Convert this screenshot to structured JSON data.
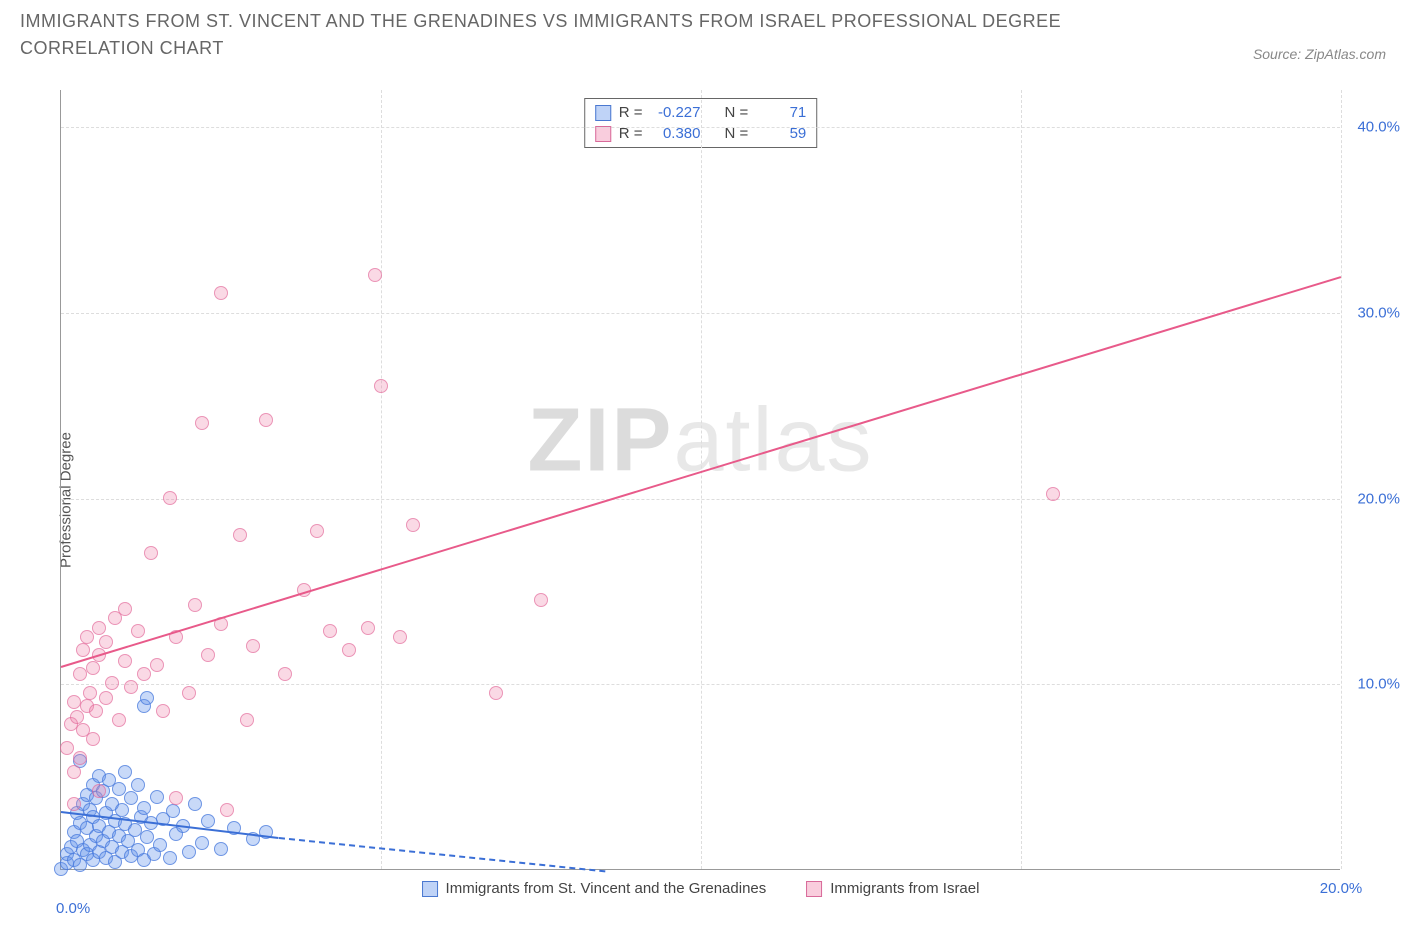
{
  "header": {
    "title": "IMMIGRANTS FROM ST. VINCENT AND THE GRENADINES VS IMMIGRANTS FROM ISRAEL PROFESSIONAL DEGREE CORRELATION CHART",
    "source_prefix": "Source: ",
    "source_name": "ZipAtlas.com"
  },
  "watermark": {
    "part1": "ZIP",
    "part2": "atlas"
  },
  "chart": {
    "type": "scatter",
    "ylabel": "Professional Degree",
    "xlim": [
      0,
      20
    ],
    "ylim": [
      0,
      42
    ],
    "x_ticks": [
      0,
      20
    ],
    "x_tick_labels": [
      "0.0%",
      "20.0%"
    ],
    "y_ticks": [
      10,
      20,
      30,
      40
    ],
    "y_tick_labels": [
      "10.0%",
      "20.0%",
      "30.0%",
      "40.0%"
    ],
    "x_gridlines_at": [
      5,
      10,
      15,
      20
    ],
    "background_color": "#ffffff",
    "grid_color": "#dddddd",
    "axis_color": "#999999",
    "tick_label_color": "#3b6fd6",
    "point_radius": 7,
    "series": [
      {
        "name": "Immigrants from St. Vincent and the Grenadines",
        "color_fill": "rgba(96,145,234,0.35)",
        "color_stroke": "rgba(70,120,220,0.7)",
        "trend_color": "#3b6fd6",
        "R": "-0.227",
        "N": "71",
        "trend": {
          "x1": 0,
          "y1": 3.2,
          "x2": 3.4,
          "y2": 1.8,
          "x2_dash": 8.5,
          "y2_dash": 0
        },
        "points": [
          [
            0.0,
            0.0
          ],
          [
            0.1,
            0.3
          ],
          [
            0.1,
            0.8
          ],
          [
            0.15,
            1.2
          ],
          [
            0.2,
            0.5
          ],
          [
            0.2,
            2.0
          ],
          [
            0.25,
            1.5
          ],
          [
            0.25,
            3.0
          ],
          [
            0.3,
            0.2
          ],
          [
            0.3,
            2.5
          ],
          [
            0.35,
            1.0
          ],
          [
            0.35,
            3.5
          ],
          [
            0.4,
            0.8
          ],
          [
            0.4,
            2.2
          ],
          [
            0.4,
            4.0
          ],
          [
            0.45,
            1.3
          ],
          [
            0.45,
            3.2
          ],
          [
            0.5,
            0.5
          ],
          [
            0.5,
            2.8
          ],
          [
            0.5,
            4.5
          ],
          [
            0.55,
            1.8
          ],
          [
            0.55,
            3.8
          ],
          [
            0.6,
            0.9
          ],
          [
            0.6,
            2.3
          ],
          [
            0.6,
            5.0
          ],
          [
            0.65,
            1.5
          ],
          [
            0.65,
            4.2
          ],
          [
            0.7,
            0.6
          ],
          [
            0.7,
            3.0
          ],
          [
            0.75,
            2.0
          ],
          [
            0.75,
            4.8
          ],
          [
            0.8,
            1.2
          ],
          [
            0.8,
            3.5
          ],
          [
            0.85,
            0.4
          ],
          [
            0.85,
            2.6
          ],
          [
            0.9,
            1.8
          ],
          [
            0.9,
            4.3
          ],
          [
            0.95,
            0.9
          ],
          [
            0.95,
            3.2
          ],
          [
            1.0,
            2.4
          ],
          [
            1.0,
            5.2
          ],
          [
            1.05,
            1.5
          ],
          [
            1.1,
            0.7
          ],
          [
            1.1,
            3.8
          ],
          [
            1.15,
            2.1
          ],
          [
            1.2,
            1.0
          ],
          [
            1.2,
            4.5
          ],
          [
            1.25,
            2.8
          ],
          [
            1.3,
            0.5
          ],
          [
            1.3,
            3.3
          ],
          [
            1.35,
            1.7
          ],
          [
            1.4,
            2.5
          ],
          [
            1.45,
            0.8
          ],
          [
            1.5,
            3.9
          ],
          [
            1.55,
            1.3
          ],
          [
            1.6,
            2.7
          ],
          [
            1.7,
            0.6
          ],
          [
            1.75,
            3.1
          ],
          [
            1.8,
            1.9
          ],
          [
            1.9,
            2.3
          ],
          [
            2.0,
            0.9
          ],
          [
            2.1,
            3.5
          ],
          [
            2.2,
            1.4
          ],
          [
            2.3,
            2.6
          ],
          [
            2.5,
            1.1
          ],
          [
            2.7,
            2.2
          ],
          [
            3.0,
            1.6
          ],
          [
            3.2,
            2.0
          ],
          [
            1.3,
            8.8
          ],
          [
            1.35,
            9.2
          ],
          [
            0.3,
            5.8
          ]
        ]
      },
      {
        "name": "Immigrants from Israel",
        "color_fill": "rgba(240,130,170,0.3)",
        "color_stroke": "rgba(225,100,150,0.6)",
        "trend_color": "#e85a8a",
        "R": "0.380",
        "N": "59",
        "trend": {
          "x1": 0,
          "y1": 11.0,
          "x2": 20,
          "y2": 32.0
        },
        "points": [
          [
            0.1,
            6.5
          ],
          [
            0.15,
            7.8
          ],
          [
            0.2,
            5.2
          ],
          [
            0.2,
            9.0
          ],
          [
            0.25,
            8.2
          ],
          [
            0.3,
            6.0
          ],
          [
            0.3,
            10.5
          ],
          [
            0.35,
            7.5
          ],
          [
            0.35,
            11.8
          ],
          [
            0.4,
            8.8
          ],
          [
            0.4,
            12.5
          ],
          [
            0.45,
            9.5
          ],
          [
            0.5,
            7.0
          ],
          [
            0.5,
            10.8
          ],
          [
            0.55,
            8.5
          ],
          [
            0.6,
            11.5
          ],
          [
            0.6,
            13.0
          ],
          [
            0.7,
            9.2
          ],
          [
            0.7,
            12.2
          ],
          [
            0.8,
            10.0
          ],
          [
            0.85,
            13.5
          ],
          [
            0.9,
            8.0
          ],
          [
            1.0,
            11.2
          ],
          [
            1.0,
            14.0
          ],
          [
            1.1,
            9.8
          ],
          [
            1.2,
            12.8
          ],
          [
            1.3,
            10.5
          ],
          [
            1.4,
            17.0
          ],
          [
            1.5,
            11.0
          ],
          [
            1.6,
            8.5
          ],
          [
            1.7,
            20.0
          ],
          [
            1.8,
            12.5
          ],
          [
            2.0,
            9.5
          ],
          [
            2.1,
            14.2
          ],
          [
            2.2,
            24.0
          ],
          [
            2.3,
            11.5
          ],
          [
            2.5,
            13.2
          ],
          [
            2.8,
            18.0
          ],
          [
            3.0,
            12.0
          ],
          [
            3.2,
            24.2
          ],
          [
            3.5,
            10.5
          ],
          [
            3.8,
            15.0
          ],
          [
            4.0,
            18.2
          ],
          [
            4.2,
            12.8
          ],
          [
            4.5,
            11.8
          ],
          [
            4.8,
            13.0
          ],
          [
            5.0,
            26.0
          ],
          [
            5.3,
            12.5
          ],
          [
            5.5,
            18.5
          ],
          [
            2.5,
            31.0
          ],
          [
            4.9,
            32.0
          ],
          [
            6.8,
            9.5
          ],
          [
            7.5,
            14.5
          ],
          [
            0.2,
            3.5
          ],
          [
            0.6,
            4.2
          ],
          [
            1.8,
            3.8
          ],
          [
            2.6,
            3.2
          ],
          [
            2.9,
            8.0
          ],
          [
            15.5,
            20.2
          ]
        ]
      }
    ]
  },
  "stats_box": {
    "r_label": "R =",
    "n_label": "N ="
  },
  "legend": {
    "items": [
      {
        "key": "blue",
        "label": "Immigrants from St. Vincent and the Grenadines"
      },
      {
        "key": "pink",
        "label": "Immigrants from Israel"
      }
    ]
  }
}
